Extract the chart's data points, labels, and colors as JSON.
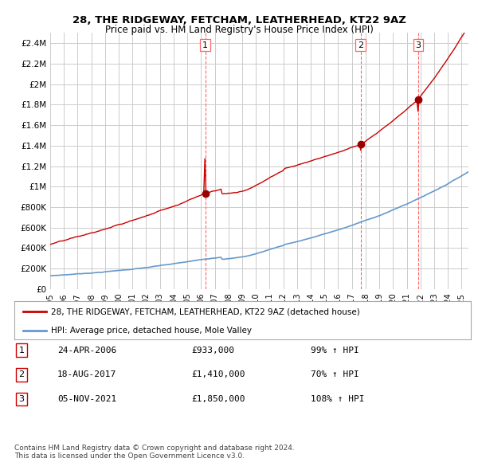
{
  "title": "28, THE RIDGEWAY, FETCHAM, LEATHERHEAD, KT22 9AZ",
  "subtitle": "Price paid vs. HM Land Registry's House Price Index (HPI)",
  "ylabel_ticks": [
    "£0",
    "£200K",
    "£400K",
    "£600K",
    "£800K",
    "£1M",
    "£1.2M",
    "£1.4M",
    "£1.6M",
    "£1.8M",
    "£2M",
    "£2.2M",
    "£2.4M"
  ],
  "ytick_values": [
    0,
    200000,
    400000,
    600000,
    800000,
    1000000,
    1200000,
    1400000,
    1600000,
    1800000,
    2000000,
    2200000,
    2400000
  ],
  "ylim": [
    0,
    2500000
  ],
  "xlim_start": 1995.0,
  "xlim_end": 2025.5,
  "sale_dates": [
    2006.31,
    2017.63,
    2021.84
  ],
  "sale_prices": [
    933000,
    1410000,
    1850000
  ],
  "sale_labels": [
    "1",
    "2",
    "3"
  ],
  "red_line_color": "#cc0000",
  "blue_line_color": "#6699cc",
  "sale_dot_color": "#990000",
  "vline_color": "#ff6666",
  "grid_color": "#cccccc",
  "bg_color": "#ffffff",
  "legend_red_label": "28, THE RIDGEWAY, FETCHAM, LEATHERHEAD, KT22 9AZ (detached house)",
  "legend_blue_label": "HPI: Average price, detached house, Mole Valley",
  "table_rows": [
    {
      "num": "1",
      "date": "24-APR-2006",
      "price": "£933,000",
      "pct": "99% ↑ HPI"
    },
    {
      "num": "2",
      "date": "18-AUG-2017",
      "price": "£1,410,000",
      "pct": "70% ↑ HPI"
    },
    {
      "num": "3",
      "date": "05-NOV-2021",
      "price": "£1,850,000",
      "pct": "108% ↑ HPI"
    }
  ],
  "footer": "Contains HM Land Registry data © Crown copyright and database right 2024.\nThis data is licensed under the Open Government Licence v3.0.",
  "xtick_years": [
    1995,
    1996,
    1997,
    1998,
    1999,
    2000,
    2001,
    2002,
    2003,
    2004,
    2005,
    2006,
    2007,
    2008,
    2009,
    2010,
    2011,
    2012,
    2013,
    2014,
    2015,
    2016,
    2017,
    2018,
    2019,
    2020,
    2021,
    2022,
    2023,
    2024,
    2025
  ]
}
